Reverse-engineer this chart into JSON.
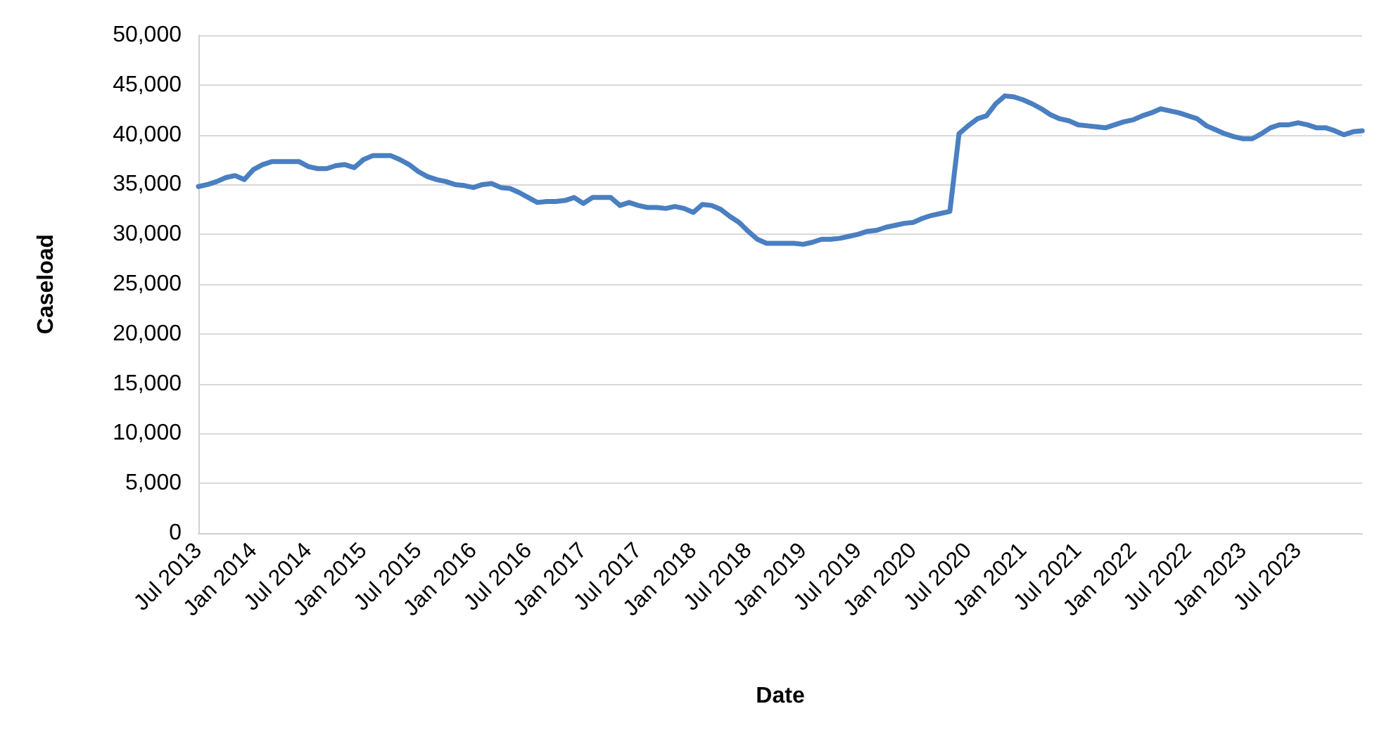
{
  "chart_data": {
    "type": "line",
    "xlabel": "Date",
    "ylabel": "Caseload",
    "categories": [
      "Jul 2013",
      null,
      null,
      null,
      null,
      null,
      "Jan 2014",
      null,
      null,
      null,
      null,
      null,
      "Jul 2014",
      null,
      null,
      null,
      null,
      null,
      "Jan 2015",
      null,
      null,
      null,
      null,
      null,
      "Jul 2015",
      null,
      null,
      null,
      null,
      null,
      "Jan 2016",
      null,
      null,
      null,
      null,
      null,
      "Jul 2016",
      null,
      null,
      null,
      null,
      null,
      "Jan 2017",
      null,
      null,
      null,
      null,
      null,
      "Jul 2017",
      null,
      null,
      null,
      null,
      null,
      "Jan 2018",
      null,
      null,
      null,
      null,
      null,
      "Jul 2018",
      null,
      null,
      null,
      null,
      null,
      "Jan 2019",
      null,
      null,
      null,
      null,
      null,
      "Jul 2019",
      null,
      null,
      null,
      null,
      null,
      "Jan 2020",
      null,
      null,
      null,
      null,
      null,
      "Jul 2020",
      null,
      null,
      null,
      null,
      null,
      "Jan 2021",
      null,
      null,
      null,
      null,
      null,
      "Jul 2021",
      null,
      null,
      null,
      null,
      null,
      "Jan 2022",
      null,
      null,
      null,
      null,
      null,
      "Jul 2022",
      null,
      null,
      null,
      null,
      null,
      "Jan 2023",
      null,
      null,
      null,
      null,
      null,
      "Jul 2023",
      null,
      null,
      null,
      null,
      null,
      null,
      null
    ],
    "series": [
      {
        "color": "#4a7fc1",
        "values": [
          34800,
          35000,
          35300,
          35700,
          35900,
          35500,
          36500,
          37000,
          37300,
          37300,
          37300,
          37300,
          36800,
          36600,
          36600,
          36900,
          37000,
          36700,
          37500,
          37900,
          37900,
          37900,
          37500,
          37000,
          36300,
          35800,
          35500,
          35300,
          35000,
          34900,
          34700,
          35000,
          35100,
          34700,
          34600,
          34200,
          33700,
          33200,
          33300,
          33300,
          33400,
          33700,
          33100,
          33700,
          33700,
          33700,
          32900,
          33200,
          32900,
          32700,
          32700,
          32600,
          32800,
          32600,
          32200,
          33000,
          32900,
          32500,
          31800,
          31200,
          30300,
          29500,
          29100,
          29100,
          29100,
          29100,
          29000,
          29200,
          29500,
          29500,
          29600,
          29800,
          30000,
          30300,
          30400,
          30700,
          30900,
          31100,
          31200,
          31600,
          31900,
          32100,
          32300,
          40100,
          40900,
          41600,
          41900,
          43100,
          43900,
          43800,
          43500,
          43100,
          42600,
          42000,
          41600,
          41400,
          41000,
          40900,
          40800,
          40700,
          41000,
          41300,
          41500,
          41900,
          42200,
          42600,
          42400,
          42200,
          41900,
          41600,
          40900,
          40500,
          40100,
          39800,
          39600,
          39600,
          40100,
          40700,
          41000,
          41000,
          41200,
          41000,
          40700,
          40700,
          40400,
          40000,
          40300,
          40400
        ]
      }
    ],
    "ylim": [
      0,
      50000
    ],
    "yticks": [
      {
        "value": 0,
        "label": "0"
      },
      {
        "value": 5000,
        "label": "5,000"
      },
      {
        "value": 10000,
        "label": "10,000"
      },
      {
        "value": 15000,
        "label": "15,000"
      },
      {
        "value": 20000,
        "label": "20,000"
      },
      {
        "value": 25000,
        "label": "25,000"
      },
      {
        "value": 30000,
        "label": "30,000"
      },
      {
        "value": 35000,
        "label": "35,000"
      },
      {
        "value": 40000,
        "label": "40,000"
      },
      {
        "value": 45000,
        "label": "45,000"
      },
      {
        "value": 50000,
        "label": "50,000"
      }
    ],
    "grid": "y",
    "marker": "none",
    "line_style": "solid"
  }
}
